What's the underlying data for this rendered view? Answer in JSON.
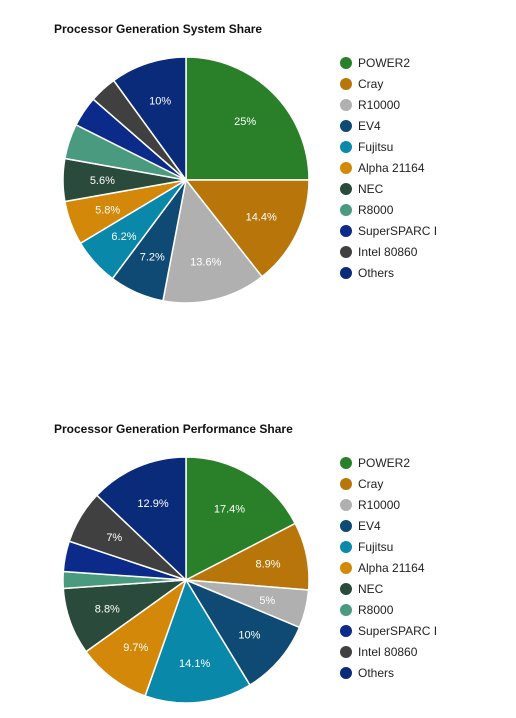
{
  "chart_data": [
    {
      "type": "pie",
      "title": "Processor Generation System Share",
      "categories": [
        "POWER2",
        "Cray",
        "R10000",
        "EV4",
        "Fujitsu",
        "Alpha 21164",
        "NEC",
        "R8000",
        "SuperSPARC I",
        "Intel 80860",
        "Others"
      ],
      "values": [
        25,
        14.4,
        13.6,
        7.2,
        6.2,
        5.8,
        5.6,
        4.6,
        4.0,
        3.6,
        10
      ],
      "slice_labels": [
        "25%",
        "14.4%",
        "13.6%",
        "7.2%",
        "6.2%",
        "5.8%",
        "5.6%",
        "",
        "",
        "",
        "10%"
      ],
      "colors": [
        "#2a8028",
        "#b8760a",
        "#b0b0b0",
        "#0e4a74",
        "#0a88aa",
        "#d4880a",
        "#2a4a3c",
        "#4a9a80",
        "#0c2a8a",
        "#404040",
        "#0a2a7a"
      ],
      "legend_position": "right"
    },
    {
      "type": "pie",
      "title": "Processor Generation Performance Share",
      "categories": [
        "POWER2",
        "Cray",
        "R10000",
        "EV4",
        "Fujitsu",
        "Alpha 21164",
        "NEC",
        "R8000",
        "SuperSPARC I",
        "Intel 80860",
        "Others"
      ],
      "values": [
        17.4,
        8.9,
        5,
        10,
        14.1,
        9.7,
        8.8,
        2.2,
        4.0,
        7,
        12.9
      ],
      "slice_labels": [
        "17.4%",
        "8.9%",
        "5%",
        "10%",
        "14.1%",
        "9.7%",
        "8.8%",
        "",
        "",
        "7%",
        "12.9%"
      ],
      "colors": [
        "#2a8028",
        "#b8760a",
        "#b0b0b0",
        "#0e4a74",
        "#0a88aa",
        "#d4880a",
        "#2a4a3c",
        "#4a9a80",
        "#0c2a8a",
        "#404040",
        "#0a2a7a"
      ],
      "legend_position": "right"
    }
  ]
}
